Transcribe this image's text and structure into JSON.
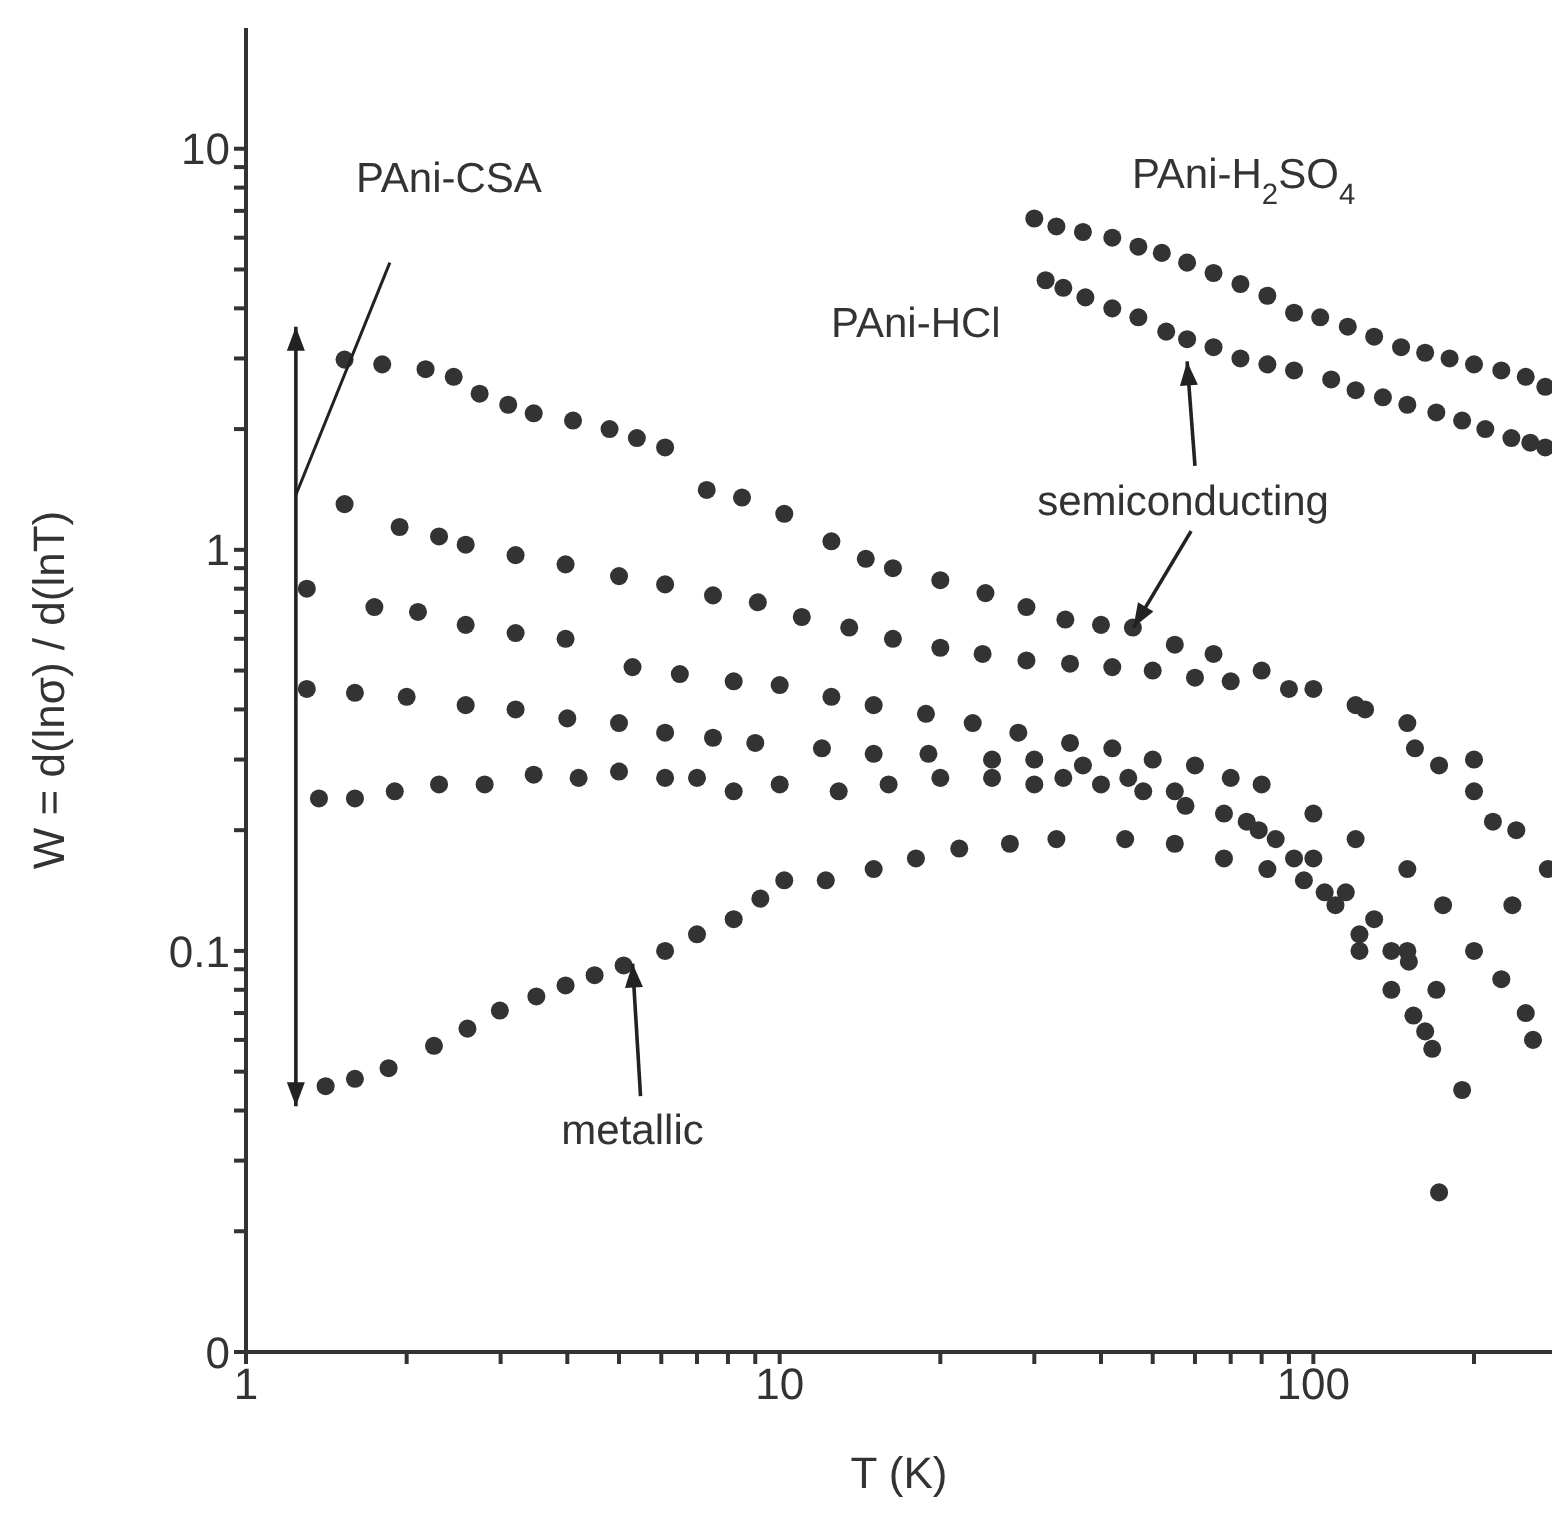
{
  "chart_data": {
    "type": "scatter",
    "xlabel": "T  (K)",
    "ylabel": "W  =  d(lnσ) / d(lnT)",
    "log": "xy",
    "marker": "circle",
    "xlim": [
      1,
      280
    ],
    "xticks": [
      1,
      {
        "value": 2,
        "label": null
      },
      {
        "value": 3,
        "label": null
      },
      {
        "value": 4,
        "label": null
      },
      {
        "value": 5,
        "label": null
      },
      {
        "value": 6,
        "label": null
      },
      {
        "value": 7,
        "label": null
      },
      {
        "value": 8,
        "label": null
      },
      {
        "value": 9,
        "label": null
      },
      10,
      {
        "value": 20,
        "label": null
      },
      {
        "value": 30,
        "label": null
      },
      {
        "value": 40,
        "label": null
      },
      {
        "value": 50,
        "label": null
      },
      {
        "value": 60,
        "label": null
      },
      {
        "value": 70,
        "label": null
      },
      {
        "value": 80,
        "label": null
      },
      {
        "value": 90,
        "label": null
      },
      100,
      {
        "value": 200,
        "label": null
      }
    ],
    "ylim": [
      0.01,
      20
    ],
    "yticks": [
      {
        "value": 0.01,
        "label": "0"
      },
      {
        "value": 0.02,
        "label": null
      },
      {
        "value": 0.03,
        "label": null
      },
      {
        "value": 0.04,
        "label": null
      },
      {
        "value": 0.05,
        "label": null
      },
      {
        "value": 0.06,
        "label": null
      },
      {
        "value": 0.07,
        "label": null
      },
      {
        "value": 0.08,
        "label": null
      },
      {
        "value": 0.09,
        "label": null
      },
      0.1,
      {
        "value": 0.2,
        "label": null
      },
      {
        "value": 0.3,
        "label": null
      },
      {
        "value": 0.4,
        "label": null
      },
      {
        "value": 0.5,
        "label": null
      },
      {
        "value": 0.6,
        "label": null
      },
      {
        "value": 0.7,
        "label": null
      },
      {
        "value": 0.8,
        "label": null
      },
      {
        "value": 0.9,
        "label": null
      },
      1,
      {
        "value": 2,
        "label": null
      },
      {
        "value": 3,
        "label": null
      },
      {
        "value": 4,
        "label": null
      },
      {
        "value": 5,
        "label": null
      },
      {
        "value": 6,
        "label": null
      },
      {
        "value": 7,
        "label": null
      },
      {
        "value": 8,
        "label": null
      },
      {
        "value": 9,
        "label": null
      },
      10
    ],
    "annotations": [
      "PAni-CSA",
      "PAni-H$_{2}$SO$_{4}$",
      "PAni-HCl",
      {
        "text": "semiconducting",
        "x": 46,
        "y": 0.64
      },
      {
        "text": "metallic",
        "x": 5.3,
        "y": 0.093
      }
    ],
    "series": [
      {
        "color": "#333333",
        "x": [
          30,
          33,
          37,
          42,
          47,
          52,
          58,
          65,
          73,
          82,
          92,
          103,
          116,
          130,
          146,
          162,
          180,
          200,
          225,
          250,
          272
        ],
        "values": [
          6.7,
          6.4,
          6.2,
          6.0,
          5.7,
          5.5,
          5.2,
          4.9,
          4.6,
          4.3,
          3.9,
          3.8,
          3.6,
          3.4,
          3.2,
          3.1,
          3.0,
          2.9,
          2.8,
          2.7,
          2.55
        ]
      },
      {
        "color": "#333333",
        "x": [
          31.5,
          34,
          37.4,
          42,
          47,
          53,
          58,
          65,
          73,
          82,
          92,
          108,
          120,
          135,
          150,
          170,
          190,
          210,
          235,
          255,
          272
        ],
        "values": [
          4.7,
          4.5,
          4.26,
          4.0,
          3.8,
          3.5,
          3.35,
          3.2,
          3.0,
          2.9,
          2.8,
          2.66,
          2.5,
          2.4,
          2.3,
          2.2,
          2.1,
          2.0,
          1.9,
          1.85,
          1.8
        ]
      },
      {
        "color": "#333333",
        "x": [
          1.53,
          1.8,
          2.17,
          2.45,
          2.74,
          3.1,
          3.46,
          4.1,
          4.8,
          5.4,
          6.1,
          7.3,
          8.5,
          10.2,
          12.5,
          14.5,
          16.3,
          20,
          24.3,
          29,
          34.3,
          40,
          45.9,
          55,
          65,
          80,
          100,
          125,
          155,
          172,
          200,
          217,
          236,
          258
        ],
        "values": [
          2.98,
          2.9,
          2.82,
          2.7,
          2.45,
          2.3,
          2.19,
          2.1,
          2.0,
          1.9,
          1.8,
          1.41,
          1.35,
          1.23,
          1.05,
          0.95,
          0.9,
          0.84,
          0.78,
          0.72,
          0.67,
          0.65,
          0.64,
          0.58,
          0.55,
          0.5,
          0.45,
          0.4,
          0.32,
          0.29,
          0.25,
          0.21,
          0.13,
          0.06
        ]
      },
      {
        "color": "#333333",
        "x": [
          1.53,
          1.94,
          2.3,
          2.58,
          3.2,
          3.97,
          5,
          6.1,
          7.5,
          9.1,
          11,
          13.5,
          16.3,
          20,
          24,
          29,
          35,
          42,
          50,
          60,
          70,
          90,
          120,
          150,
          200,
          240,
          275
        ],
        "values": [
          1.3,
          1.14,
          1.08,
          1.03,
          0.97,
          0.92,
          0.86,
          0.82,
          0.77,
          0.74,
          0.68,
          0.64,
          0.6,
          0.57,
          0.55,
          0.53,
          0.52,
          0.51,
          0.5,
          0.48,
          0.47,
          0.45,
          0.41,
          0.37,
          0.3,
          0.2,
          0.16
        ]
      },
      {
        "color": "#333333",
        "x": [
          1.3,
          1.74,
          2.1,
          2.58,
          3.2,
          3.97,
          5.3,
          6.5,
          8.2,
          10,
          12.5,
          15,
          18.8,
          23,
          28,
          35,
          42,
          50,
          60,
          70,
          80,
          100,
          120,
          150,
          175,
          200,
          225,
          250
        ],
        "values": [
          0.8,
          0.72,
          0.7,
          0.65,
          0.62,
          0.6,
          0.51,
          0.49,
          0.47,
          0.46,
          0.43,
          0.41,
          0.39,
          0.37,
          0.35,
          0.33,
          0.32,
          0.3,
          0.29,
          0.27,
          0.26,
          0.22,
          0.19,
          0.16,
          0.13,
          0.1,
          0.085,
          0.07
        ]
      },
      {
        "color": "#333333",
        "x": [
          1.3,
          1.6,
          2,
          2.58,
          3.2,
          4,
          5,
          6.1,
          7.5,
          9,
          12,
          15,
          19,
          25,
          30,
          37,
          45,
          55,
          75,
          85,
          100,
          115,
          130,
          150,
          170,
          190
        ],
        "values": [
          0.45,
          0.44,
          0.43,
          0.41,
          0.4,
          0.38,
          0.37,
          0.35,
          0.34,
          0.33,
          0.32,
          0.31,
          0.31,
          0.3,
          0.3,
          0.29,
          0.27,
          0.25,
          0.21,
          0.19,
          0.17,
          0.14,
          0.12,
          0.1,
          0.08,
          0.045
        ]
      },
      {
        "color": "#333333",
        "x": [
          1.37,
          1.6,
          1.9,
          2.3,
          2.8,
          3.46,
          4.2,
          5,
          6.1,
          7,
          8.2,
          10,
          12.9,
          16,
          20,
          25,
          30,
          34,
          40,
          48,
          57.6,
          68,
          79,
          92,
          105,
          122,
          140,
          154,
          167
        ],
        "values": [
          0.24,
          0.24,
          0.25,
          0.26,
          0.26,
          0.275,
          0.27,
          0.28,
          0.27,
          0.27,
          0.25,
          0.26,
          0.25,
          0.26,
          0.27,
          0.27,
          0.26,
          0.27,
          0.26,
          0.25,
          0.23,
          0.22,
          0.2,
          0.17,
          0.14,
          0.1,
          0.08,
          0.069,
          0.057
        ]
      },
      {
        "color": "#333333",
        "x": [
          1.41,
          1.6,
          1.85,
          2.25,
          2.6,
          2.99,
          3.5,
          3.97,
          4.5,
          5.1,
          6.1,
          7,
          8.2,
          9.2,
          10.2,
          12.2,
          15,
          18,
          21.7,
          27,
          33,
          44.4,
          55,
          68,
          82,
          96,
          110,
          122,
          140,
          151,
          162,
          172
        ],
        "values": [
          0.046,
          0.048,
          0.051,
          0.058,
          0.064,
          0.071,
          0.077,
          0.082,
          0.087,
          0.092,
          0.1,
          0.11,
          0.12,
          0.135,
          0.15,
          0.15,
          0.16,
          0.17,
          0.18,
          0.185,
          0.19,
          0.19,
          0.185,
          0.17,
          0.16,
          0.15,
          0.13,
          0.11,
          0.1,
          0.094,
          0.063,
          0.025
        ]
      }
    ]
  }
}
